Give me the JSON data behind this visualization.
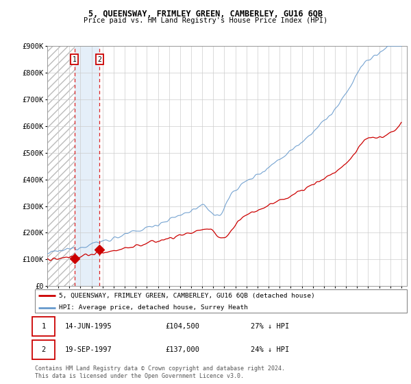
{
  "title": "5, QUEENSWAY, FRIMLEY GREEN, CAMBERLEY, GU16 6QB",
  "subtitle": "Price paid vs. HM Land Registry's House Price Index (HPI)",
  "ylim": [
    0,
    900000
  ],
  "xlim_start": 1993.0,
  "xlim_end": 2025.5,
  "sale1_x": 1995.45,
  "sale1_y": 104500,
  "sale2_x": 1997.72,
  "sale2_y": 137000,
  "sale1_date": "14-JUN-1995",
  "sale1_price": "£104,500",
  "sale1_hpi": "27% ↓ HPI",
  "sale2_date": "19-SEP-1997",
  "sale2_price": "£137,000",
  "sale2_hpi": "24% ↓ HPI",
  "line_color_price": "#cc0000",
  "line_color_hpi": "#6699cc",
  "bg_color": "#ffffff",
  "grid_color": "#cccccc",
  "legend_label_price": "5, QUEENSWAY, FRIMLEY GREEN, CAMBERLEY, GU16 6QB (detached house)",
  "legend_label_hpi": "HPI: Average price, detached house, Surrey Heath",
  "footer": "Contains HM Land Registry data © Crown copyright and database right 2024.\nThis data is licensed under the Open Government Licence v3.0.",
  "yticks": [
    0,
    100000,
    200000,
    300000,
    400000,
    500000,
    600000,
    700000,
    800000,
    900000
  ],
  "ytick_labels": [
    "£0",
    "£100K",
    "£200K",
    "£300K",
    "£400K",
    "£500K",
    "£600K",
    "£700K",
    "£800K",
    "£900K"
  ]
}
